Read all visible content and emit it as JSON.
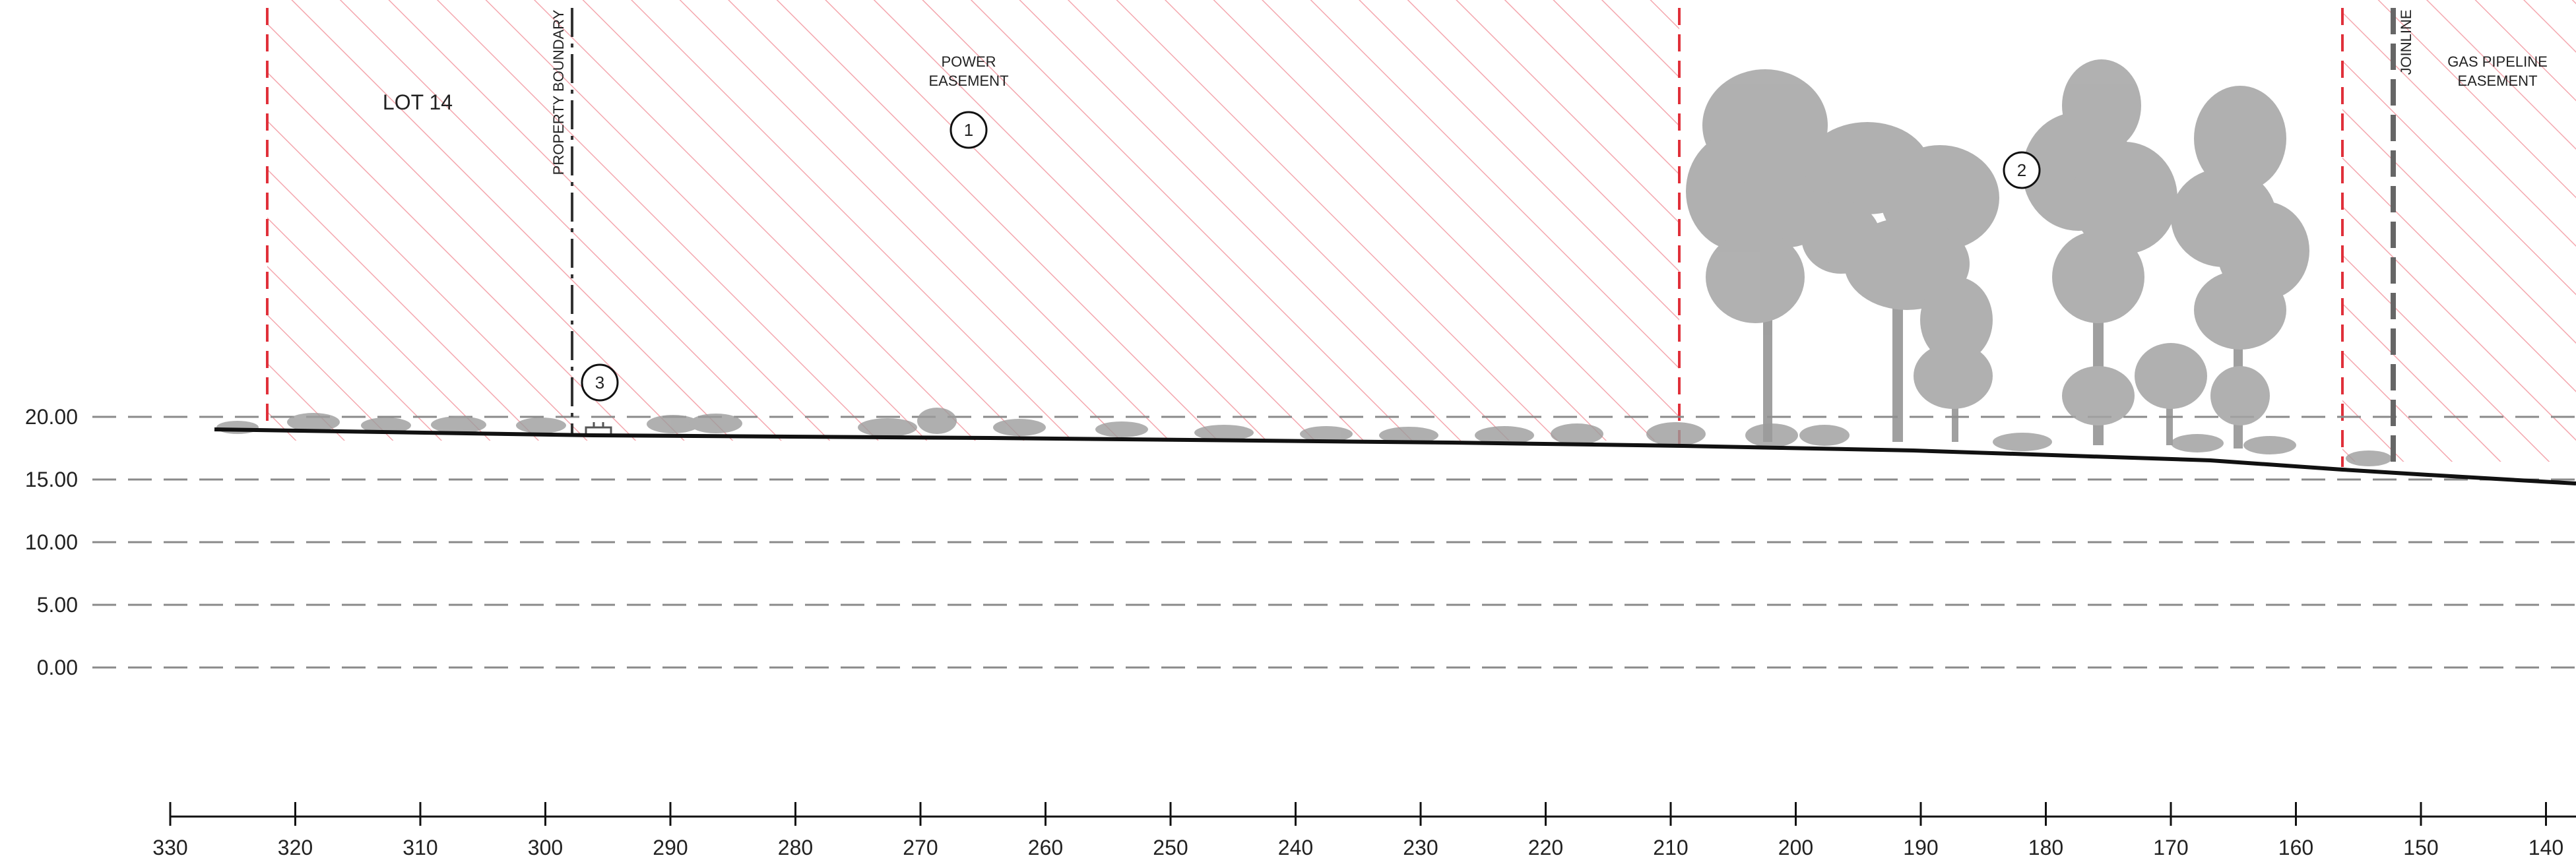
{
  "elevation_labels": [
    "20.00",
    "15.00",
    "10.00",
    "5.00",
    "0.00"
  ],
  "chainage_labels": [
    "330",
    "320",
    "310",
    "300",
    "290",
    "280",
    "270",
    "260",
    "250",
    "240",
    "230",
    "220",
    "210",
    "200",
    "190",
    "180",
    "170",
    "160",
    "150",
    "140"
  ],
  "zones": {
    "lot": "LOT 14",
    "power_easement_line1": "POWER",
    "power_easement_line2": "EASEMENT",
    "gas_easement_line1": "GAS PIPELINE",
    "gas_easement_line2": "EASEMENT"
  },
  "boundaries": {
    "property_boundary": "PROPERTY BOUNDARY",
    "joinline": "JOINLINE"
  },
  "callouts": [
    "1",
    "2",
    "3"
  ],
  "colors": {
    "easement_hatch": "#f4a7ae",
    "easement_edge": "#e0303a",
    "ground_line": "#111111",
    "datum_dash": "#8a8a8a",
    "vegetation": "#9c9c9c"
  }
}
